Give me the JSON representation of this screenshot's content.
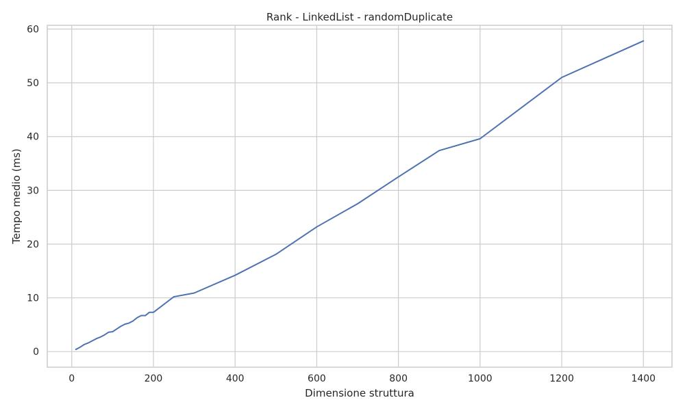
{
  "chart_data": {
    "type": "line",
    "title": "Rank - LinkedList - randomDuplicate",
    "xlabel": "Dimensione struttura",
    "ylabel": "Tempo medio (ms)",
    "xlim": [
      -60,
      1470
    ],
    "ylim": [
      -2.9,
      60.7
    ],
    "xticks": [
      0,
      200,
      400,
      600,
      800,
      1000,
      1200,
      1400
    ],
    "yticks": [
      0,
      10,
      20,
      30,
      40,
      50,
      60
    ],
    "grid": true,
    "series": [
      {
        "color": "#4c72b0",
        "x": [
          10,
          20,
          30,
          40,
          50,
          60,
          70,
          80,
          90,
          100,
          110,
          120,
          130,
          140,
          150,
          160,
          170,
          180,
          190,
          200,
          250,
          300,
          400,
          500,
          600,
          700,
          800,
          900,
          1000,
          1200,
          1400
        ],
        "y": [
          0.4,
          0.8,
          1.3,
          1.6,
          2.0,
          2.4,
          2.7,
          3.1,
          3.6,
          3.7,
          4.2,
          4.7,
          5.1,
          5.3,
          5.7,
          6.3,
          6.7,
          6.7,
          7.3,
          7.3,
          10.2,
          10.9,
          14.2,
          18.1,
          23.2,
          27.5,
          32.5,
          37.4,
          39.6,
          51.0,
          57.8
        ]
      }
    ]
  }
}
